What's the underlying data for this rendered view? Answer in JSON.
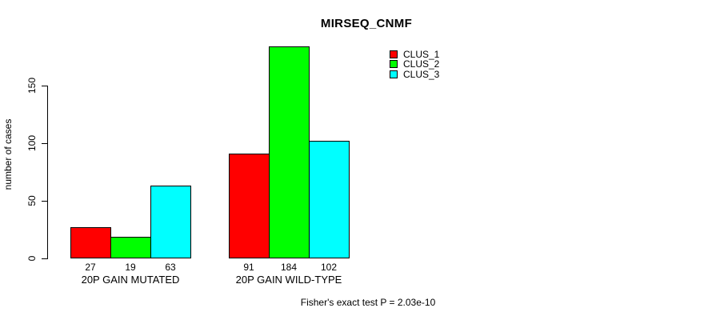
{
  "title": "MIRSEQ_CNMF",
  "footer": "Fisher's exact test P = 2.03e-10",
  "colors": {
    "background": "#ffffff",
    "text": "#000000",
    "axis": "#000000",
    "bar_border": "#000000",
    "clus_1": "#ff0000",
    "clus_2": "#00ff00",
    "clus_3": "#00ffff"
  },
  "chart_data": {
    "type": "bar",
    "title": "MIRSEQ_CNMF",
    "xlabel": "",
    "ylabel": "number of cases",
    "ylim": [
      0,
      150
    ],
    "yticks": [
      0,
      50,
      100,
      150
    ],
    "grid": false,
    "grouped": true,
    "categories": [
      "20P GAIN MUTATED",
      "20P GAIN WILD-TYPE"
    ],
    "series": [
      {
        "name": "CLUS_1",
        "color": "#ff0000",
        "values": [
          27,
          91
        ]
      },
      {
        "name": "CLUS_2",
        "color": "#00ff00",
        "values": [
          19,
          184
        ]
      },
      {
        "name": "CLUS_3",
        "color": "#00ffff",
        "values": [
          63,
          102
        ]
      }
    ],
    "bar_value_labels": [
      [
        27,
        19,
        63
      ],
      [
        91,
        184,
        102
      ]
    ],
    "legend_entries": [
      "CLUS_1",
      "CLUS_2",
      "CLUS_3"
    ],
    "legend_position": "top-right",
    "annotation": "Fisher's exact test P = 2.03e-10"
  }
}
